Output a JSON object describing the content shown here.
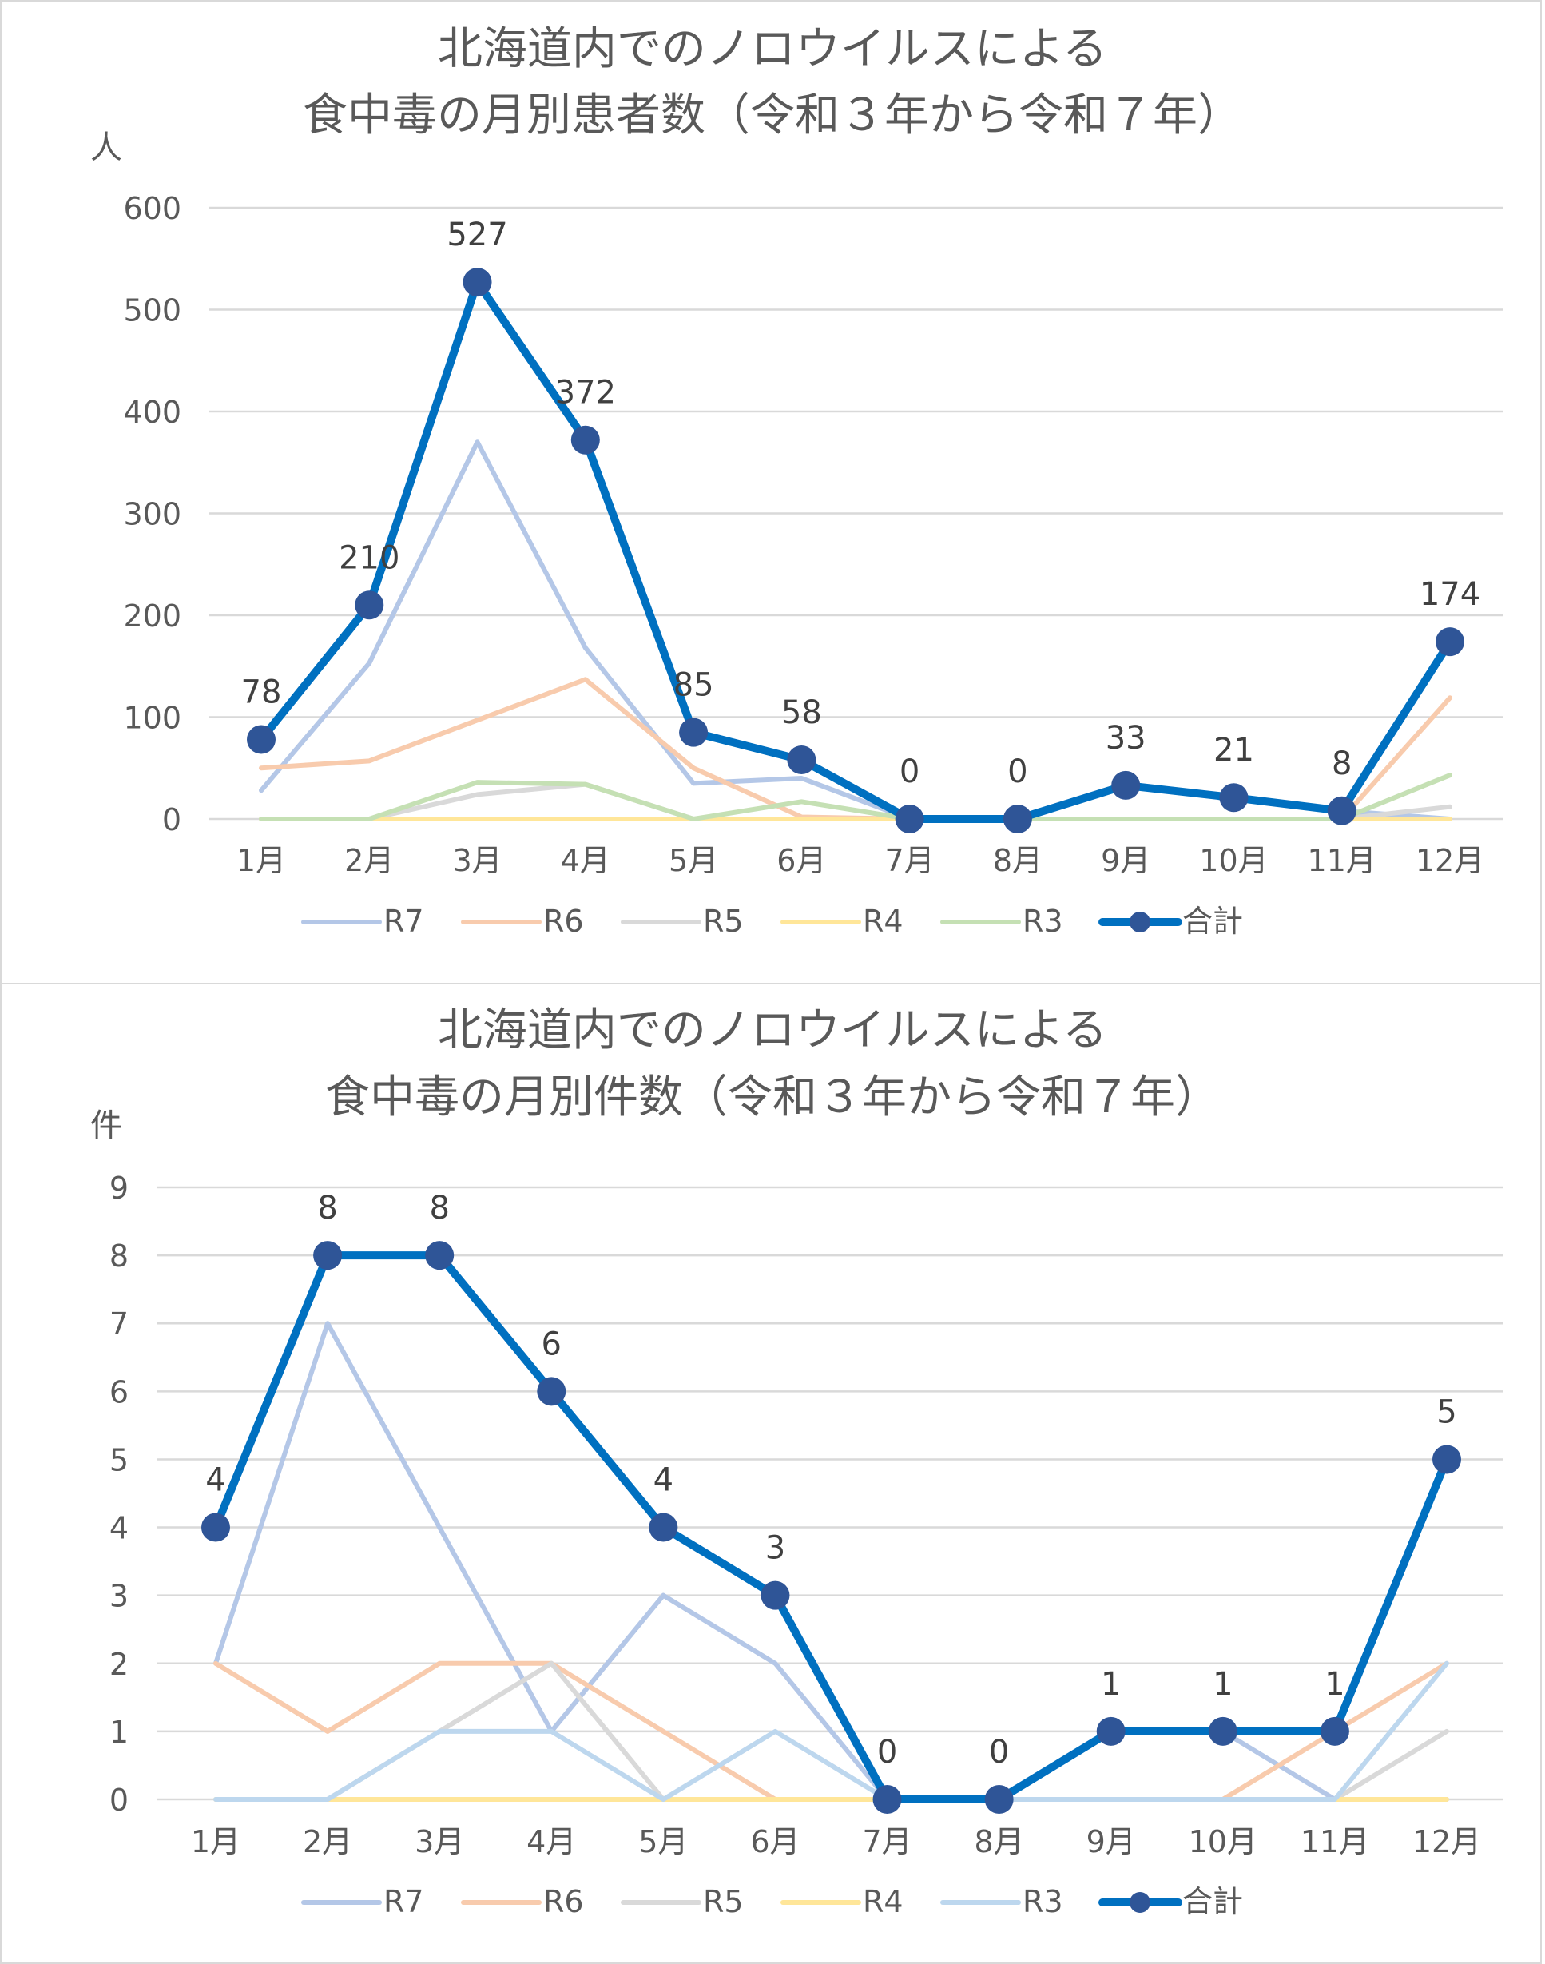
{
  "chart_data": [
    {
      "type": "line",
      "title": [
        "北海道内でのノロウイルスによる",
        "食中毒の月別患者数（令和３年から令和７年）"
      ],
      "ylabel": "人",
      "xlabel": "",
      "ylim": [
        0,
        600
      ],
      "yticks": [
        0,
        100,
        200,
        300,
        400,
        500,
        600
      ],
      "grid": true,
      "legend": "bottom",
      "categories": [
        "1月",
        "2月",
        "3月",
        "4月",
        "5月",
        "6月",
        "7月",
        "8月",
        "9月",
        "10月",
        "11月",
        "12月"
      ],
      "series": [
        {
          "name": "R7",
          "color": "#b4c7e7",
          "values": [
            28,
            153,
            370,
            168,
            35,
            40,
            0,
            0,
            33,
            21,
            8,
            0
          ]
        },
        {
          "name": "R6",
          "color": "#f8cbad",
          "values": [
            50,
            57,
            97,
            137,
            50,
            2,
            0,
            0,
            0,
            0,
            0,
            119
          ]
        },
        {
          "name": "R5",
          "color": "#d9d9d9",
          "values": [
            0,
            0,
            24,
            34,
            0,
            0,
            0,
            0,
            0,
            0,
            0,
            12
          ]
        },
        {
          "name": "R4",
          "color": "#ffe699",
          "values": [
            0,
            0,
            0,
            0,
            0,
            0,
            0,
            0,
            0,
            0,
            0,
            0
          ]
        },
        {
          "name": "R3",
          "color": "#c5e0b4",
          "values": [
            0,
            0,
            36,
            34,
            0,
            17,
            0,
            0,
            0,
            0,
            0,
            43
          ]
        },
        {
          "name": "合計",
          "color": "#0070c0",
          "marker_color": "#2f5597",
          "values": [
            78,
            210,
            527,
            372,
            85,
            58,
            0,
            0,
            33,
            21,
            8,
            174
          ],
          "data_labels": true
        }
      ]
    },
    {
      "type": "line",
      "title": [
        "北海道内でのノロウイルスによる",
        "食中毒の月別件数（令和３年から令和７年）"
      ],
      "ylabel": "件",
      "xlabel": "",
      "ylim": [
        0,
        9
      ],
      "yticks": [
        0,
        1,
        2,
        3,
        4,
        5,
        6,
        7,
        8,
        9
      ],
      "grid": true,
      "legend": "bottom",
      "categories": [
        "1月",
        "2月",
        "3月",
        "4月",
        "5月",
        "6月",
        "7月",
        "8月",
        "9月",
        "10月",
        "11月",
        "12月"
      ],
      "series": [
        {
          "name": "R7",
          "color": "#b4c7e7",
          "values": [
            2,
            7,
            4,
            1,
            3,
            2,
            0,
            0,
            1,
            1,
            0,
            0
          ]
        },
        {
          "name": "R6",
          "color": "#f8cbad",
          "values": [
            2,
            1,
            2,
            2,
            1,
            0,
            0,
            0,
            0,
            0,
            1,
            2
          ]
        },
        {
          "name": "R5",
          "color": "#d9d9d9",
          "values": [
            0,
            0,
            1,
            2,
            0,
            0,
            0,
            0,
            0,
            0,
            0,
            1
          ]
        },
        {
          "name": "R4",
          "color": "#ffe699",
          "values": [
            0,
            0,
            0,
            0,
            0,
            0,
            0,
            0,
            0,
            0,
            0,
            0
          ]
        },
        {
          "name": "R3",
          "color": "#bdd7ee",
          "values": [
            0,
            0,
            1,
            1,
            0,
            1,
            0,
            0,
            0,
            0,
            0,
            2
          ]
        },
        {
          "name": "合計",
          "color": "#0070c0",
          "marker_color": "#2f5597",
          "values": [
            4,
            8,
            8,
            6,
            4,
            3,
            0,
            0,
            1,
            1,
            1,
            5
          ],
          "data_labels": true
        }
      ]
    }
  ]
}
